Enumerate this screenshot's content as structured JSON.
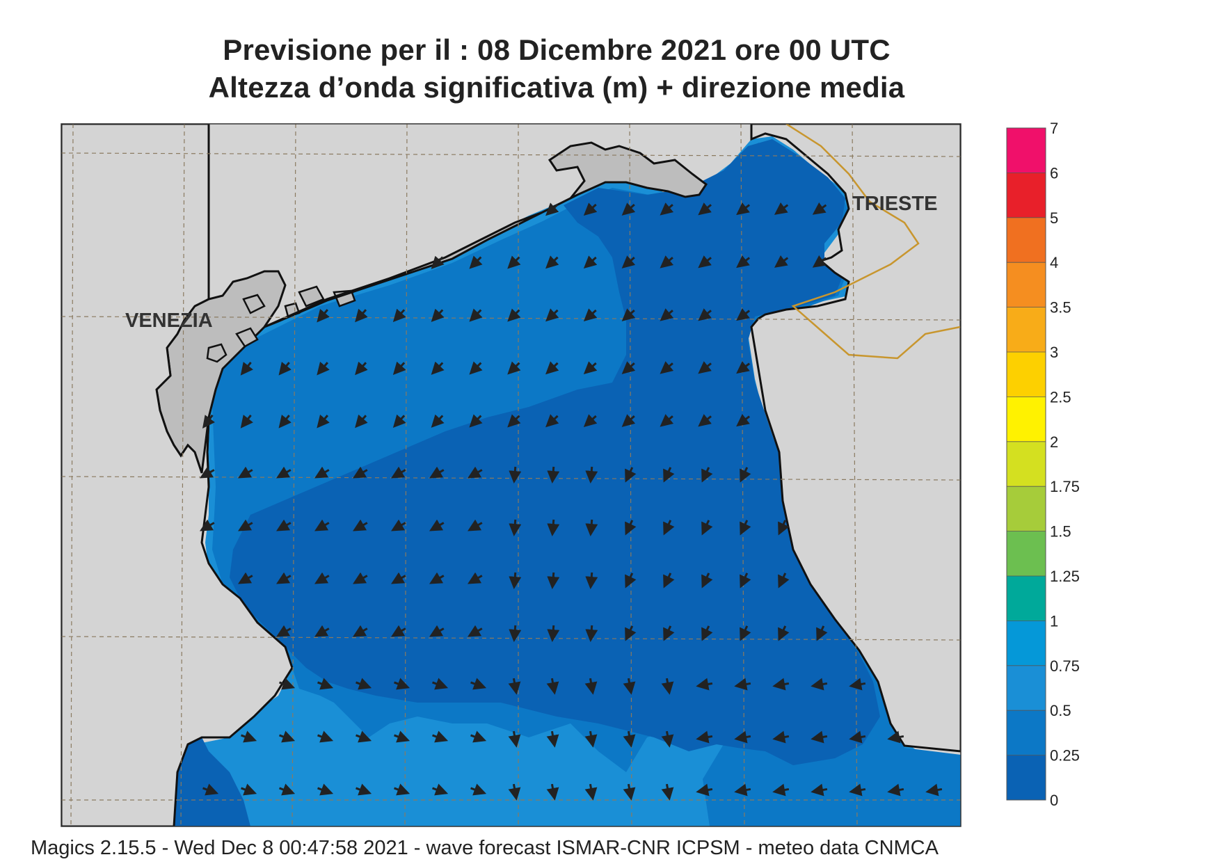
{
  "title": {
    "line1": "Previsione per il  :  08 Dicembre  2021   ore 00 UTC",
    "line2": "Altezza d’onda significativa (m) + direzione media"
  },
  "map": {
    "region": "Northern Adriatic Sea",
    "labels": {
      "venezia": "VENEZIA",
      "trieste": "TRIESTE"
    },
    "colors": {
      "land": "#d4d4d4",
      "lagoon_land": "#bdbdbd",
      "sea_0_025": "#0a62b4",
      "sea_025_05": "#0c78c6",
      "sea_05_075": "#1a8fd6",
      "coastline": "#111111",
      "border": "#c8962e",
      "grid": "#8a7a60",
      "arrow": "#222222"
    },
    "arrow_direction_note": "mean wave direction arrows"
  },
  "legend": {
    "ticks": [
      "7",
      "6",
      "5",
      "4",
      "3.5",
      "3",
      "2.5",
      "2",
      "1.75",
      "1.5",
      "1.25",
      "1",
      "0.75",
      "0.5",
      "0.25",
      "0"
    ],
    "colors": [
      "#f0106a",
      "#e8202a",
      "#f07020",
      "#f58e20",
      "#f8ac18",
      "#fdd000",
      "#fff200",
      "#d4e020",
      "#a6cc3a",
      "#6cbf50",
      "#00a99a",
      "#0598d8",
      "#1a8fd6",
      "#0c78c6",
      "#0a62b4"
    ]
  },
  "footer": {
    "text": "Magics 2.15.5 - Wed Dec  8 00:47:58 2021 - wave forecast  ISMAR-CNR  ICPSM - meteo data   CNMCA"
  }
}
